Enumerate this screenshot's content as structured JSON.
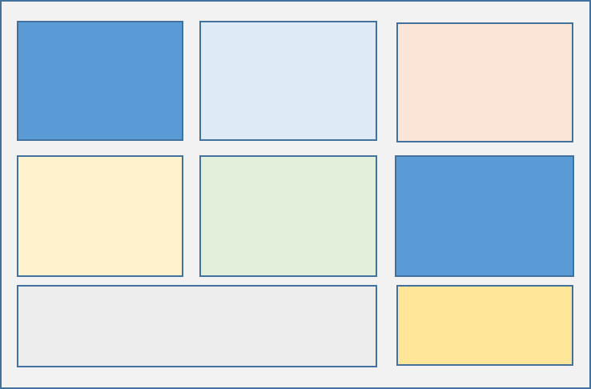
{
  "canvas": {
    "background": "#f2f2f2",
    "border": "#41719c"
  },
  "boxes": [
    {
      "name": "box-blue-top-left",
      "fill": "#5b9bd5"
    },
    {
      "name": "box-light-blue",
      "fill": "#deeaf6"
    },
    {
      "name": "box-peach",
      "fill": "#fbe5d6"
    },
    {
      "name": "box-light-yellow",
      "fill": "#fff2cc"
    },
    {
      "name": "box-light-green",
      "fill": "#e2efda"
    },
    {
      "name": "box-blue-right",
      "fill": "#5b9bd5"
    },
    {
      "name": "box-gray-wide",
      "fill": "#ededed"
    },
    {
      "name": "box-yellow",
      "fill": "#ffe699"
    }
  ]
}
